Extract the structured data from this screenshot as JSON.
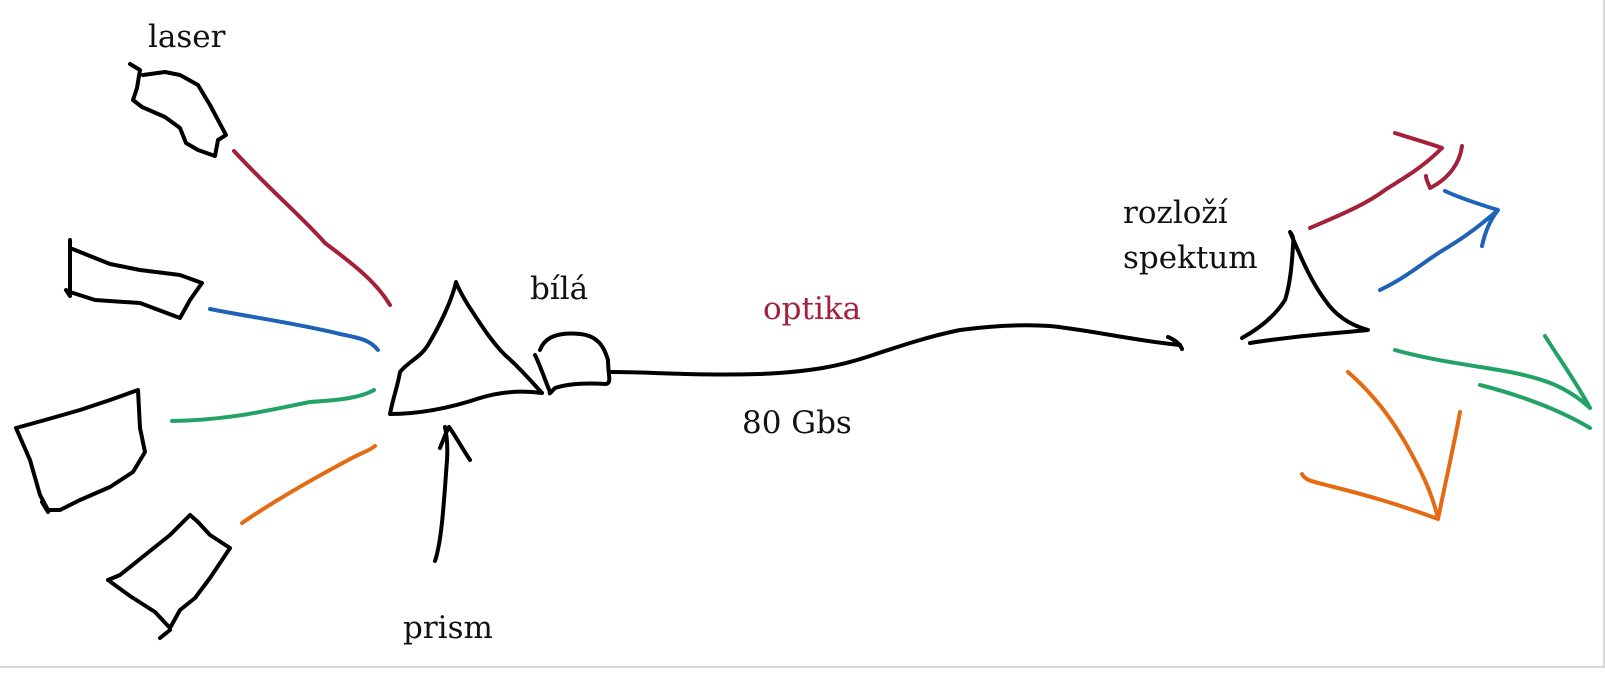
{
  "labels": {
    "laser": "laser",
    "bila": "bílá",
    "optika": "optika",
    "gbs": "80 Gbs",
    "prism": "prism",
    "rozlozi_line1": "rozloží",
    "rozlozi_line2": "spektum"
  },
  "colors": {
    "ink": "#000000",
    "red": "#a3213a",
    "blue": "#1f63b8",
    "green": "#22a265",
    "orange": "#e56a14"
  }
}
